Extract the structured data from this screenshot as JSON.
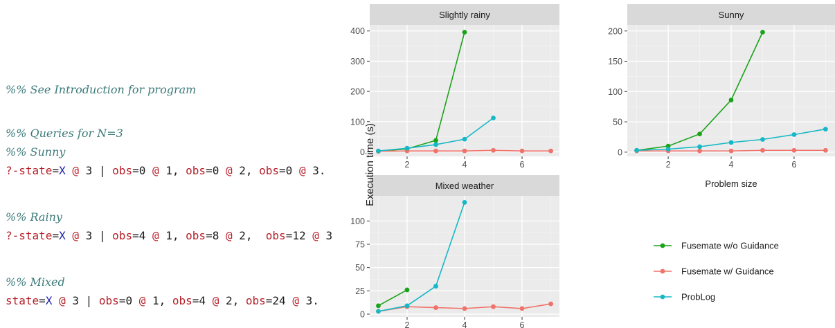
{
  "code": {
    "lines": [
      {
        "top": 120,
        "kind": "comment",
        "text": "%% See Introduction for program"
      },
      {
        "top": 183,
        "kind": "comment",
        "text": "%% Queries for N=3"
      },
      {
        "top": 210,
        "kind": "comment",
        "text": "%% Sunny"
      },
      {
        "top": 237,
        "kind": "query",
        "parts": [
          [
            "kw",
            "?-state"
          ],
          [
            "plain",
            "="
          ],
          [
            "var",
            "X"
          ],
          [
            "plain",
            " "
          ],
          [
            "at",
            "@"
          ],
          [
            "plain",
            " 3 | "
          ],
          [
            "kw",
            "obs"
          ],
          [
            "plain",
            "=0 "
          ],
          [
            "at",
            "@"
          ],
          [
            "plain",
            " 1, "
          ],
          [
            "kw",
            "obs"
          ],
          [
            "plain",
            "=0 "
          ],
          [
            "at",
            "@"
          ],
          [
            "plain",
            " 2, "
          ],
          [
            "kw",
            "obs"
          ],
          [
            "plain",
            "=0 "
          ],
          [
            "at",
            "@"
          ],
          [
            "plain",
            " 3."
          ]
        ]
      },
      {
        "top": 304,
        "kind": "comment",
        "text": "%% Rainy"
      },
      {
        "top": 331,
        "kind": "query",
        "parts": [
          [
            "kw",
            "?-state"
          ],
          [
            "plain",
            "="
          ],
          [
            "var",
            "X"
          ],
          [
            "plain",
            " "
          ],
          [
            "at",
            "@"
          ],
          [
            "plain",
            " 3 | "
          ],
          [
            "kw",
            "obs"
          ],
          [
            "plain",
            "=4 "
          ],
          [
            "at",
            "@"
          ],
          [
            "plain",
            " 1, "
          ],
          [
            "kw",
            "obs"
          ],
          [
            "plain",
            "=8 "
          ],
          [
            "at",
            "@"
          ],
          [
            "plain",
            " 2,  "
          ],
          [
            "kw",
            "obs"
          ],
          [
            "plain",
            "=12 "
          ],
          [
            "at",
            "@"
          ],
          [
            "plain",
            " 3"
          ]
        ]
      },
      {
        "top": 398,
        "kind": "comment",
        "text": "%% Mixed"
      },
      {
        "top": 425,
        "kind": "query",
        "parts": [
          [
            "kw",
            "state"
          ],
          [
            "plain",
            "="
          ],
          [
            "var",
            "X"
          ],
          [
            "plain",
            " "
          ],
          [
            "at",
            "@"
          ],
          [
            "plain",
            " 3 | "
          ],
          [
            "kw",
            "obs"
          ],
          [
            "plain",
            "=0 "
          ],
          [
            "at",
            "@"
          ],
          [
            "plain",
            " 1, "
          ],
          [
            "kw",
            "obs"
          ],
          [
            "plain",
            "=4 "
          ],
          [
            "at",
            "@"
          ],
          [
            "plain",
            " 2, "
          ],
          [
            "kw",
            "obs"
          ],
          [
            "plain",
            "=24 "
          ],
          [
            "at",
            "@"
          ],
          [
            "plain",
            " 3."
          ]
        ]
      }
    ]
  },
  "chart_data": {
    "type": "line",
    "ylabel": "Execution time (s)",
    "xlabel": "Problem size",
    "series_colors": {
      "Fusemate w/o Guidance": "#1aa31a",
      "Fusemate w/ Guidance": "#f0736b",
      "ProbLog": "#16b8c6"
    },
    "legend": [
      "Fusemate w/o Guidance",
      "Fusemate w/ Guidance",
      "ProbLog"
    ],
    "panels": [
      {
        "title": "Slightly rainy",
        "xlim": [
          0.7,
          7.3
        ],
        "ylim": [
          -15,
          420
        ],
        "xticks": [
          2,
          4,
          6
        ],
        "yticks": [
          0,
          100,
          200,
          300,
          400
        ],
        "series": [
          {
            "name": "Fusemate w/o Guidance",
            "x": [
              1,
              2,
              3,
              4
            ],
            "y": [
              2,
              10,
              38,
              396
            ]
          },
          {
            "name": "Fusemate w/ Guidance",
            "x": [
              1,
              2,
              3,
              4,
              5,
              6,
              7
            ],
            "y": [
              2,
              3,
              3,
              3,
              5,
              3,
              3
            ]
          },
          {
            "name": "ProbLog",
            "x": [
              1,
              2,
              3,
              4,
              5
            ],
            "y": [
              3,
              12,
              24,
              42,
              112
            ]
          }
        ]
      },
      {
        "title": "Sunny",
        "xlim": [
          0.7,
          7.3
        ],
        "ylim": [
          -7,
          210
        ],
        "xticks": [
          2,
          4,
          6
        ],
        "yticks": [
          0,
          50,
          100,
          150,
          200
        ],
        "series": [
          {
            "name": "Fusemate w/o Guidance",
            "x": [
              1,
              2,
              3,
              4,
              5
            ],
            "y": [
              3,
              10,
              30,
              86,
              198
            ]
          },
          {
            "name": "Fusemate w/ Guidance",
            "x": [
              1,
              2,
              3,
              4,
              5,
              6,
              7
            ],
            "y": [
              2,
              2,
              2,
              2,
              3,
              3,
              3
            ]
          },
          {
            "name": "ProbLog",
            "x": [
              1,
              2,
              3,
              4,
              5,
              6,
              7
            ],
            "y": [
              3,
              5,
              9,
              16,
              21,
              29,
              38
            ]
          }
        ]
      },
      {
        "title": "Mixed weather",
        "xlim": [
          0.7,
          7.3
        ],
        "ylim": [
          -3,
          127
        ],
        "xticks": [
          2,
          4,
          6
        ],
        "yticks": [
          0,
          25,
          50,
          75,
          100
        ],
        "series": [
          {
            "name": "Fusemate w/o Guidance",
            "x": [
              1,
              2
            ],
            "y": [
              9,
              26
            ]
          },
          {
            "name": "Fusemate w/ Guidance",
            "x": [
              1,
              2,
              3,
              4,
              5,
              6,
              7
            ],
            "y": [
              3,
              8,
              7,
              6,
              8,
              6,
              11
            ]
          },
          {
            "name": "ProbLog",
            "x": [
              1,
              2,
              3,
              4
            ],
            "y": [
              3,
              9,
              30,
              120
            ]
          }
        ]
      }
    ]
  }
}
